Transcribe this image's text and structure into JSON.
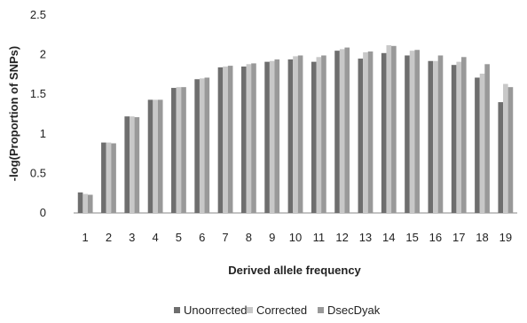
{
  "chart_data": {
    "type": "bar",
    "xlabel": "Derived allele frequency",
    "ylabel": "-log(Proportion of SNPs)",
    "ylim": [
      0,
      2.5
    ],
    "yticks": [
      "0",
      "0.5",
      "1",
      "1.5",
      "2",
      "2.5"
    ],
    "categories": [
      "1",
      "2",
      "3",
      "4",
      "5",
      "6",
      "7",
      "8",
      "9",
      "10",
      "11",
      "12",
      "13",
      "14",
      "15",
      "16",
      "17",
      "18",
      "19"
    ],
    "grid": false,
    "legend_position": "bottom",
    "series": [
      {
        "name": "Unoorrected",
        "color": "#6e6e6e",
        "values": [
          0.26,
          0.89,
          1.22,
          1.43,
          1.58,
          1.69,
          1.84,
          1.85,
          1.91,
          1.94,
          1.91,
          2.05,
          1.95,
          2.02,
          1.99,
          1.92,
          1.87,
          1.71,
          1.4
        ]
      },
      {
        "name": "Corrected",
        "color": "#c8c8c8",
        "values": [
          0.24,
          0.89,
          1.22,
          1.43,
          1.59,
          1.7,
          1.85,
          1.88,
          1.92,
          1.98,
          1.97,
          2.07,
          2.03,
          2.12,
          2.05,
          1.92,
          1.91,
          1.76,
          1.63
        ]
      },
      {
        "name": "DsecDyak",
        "color": "#999999",
        "values": [
          0.23,
          0.88,
          1.21,
          1.43,
          1.59,
          1.71,
          1.86,
          1.89,
          1.94,
          1.99,
          1.99,
          2.09,
          2.04,
          2.11,
          2.06,
          1.99,
          1.97,
          1.88,
          1.59
        ]
      }
    ]
  }
}
